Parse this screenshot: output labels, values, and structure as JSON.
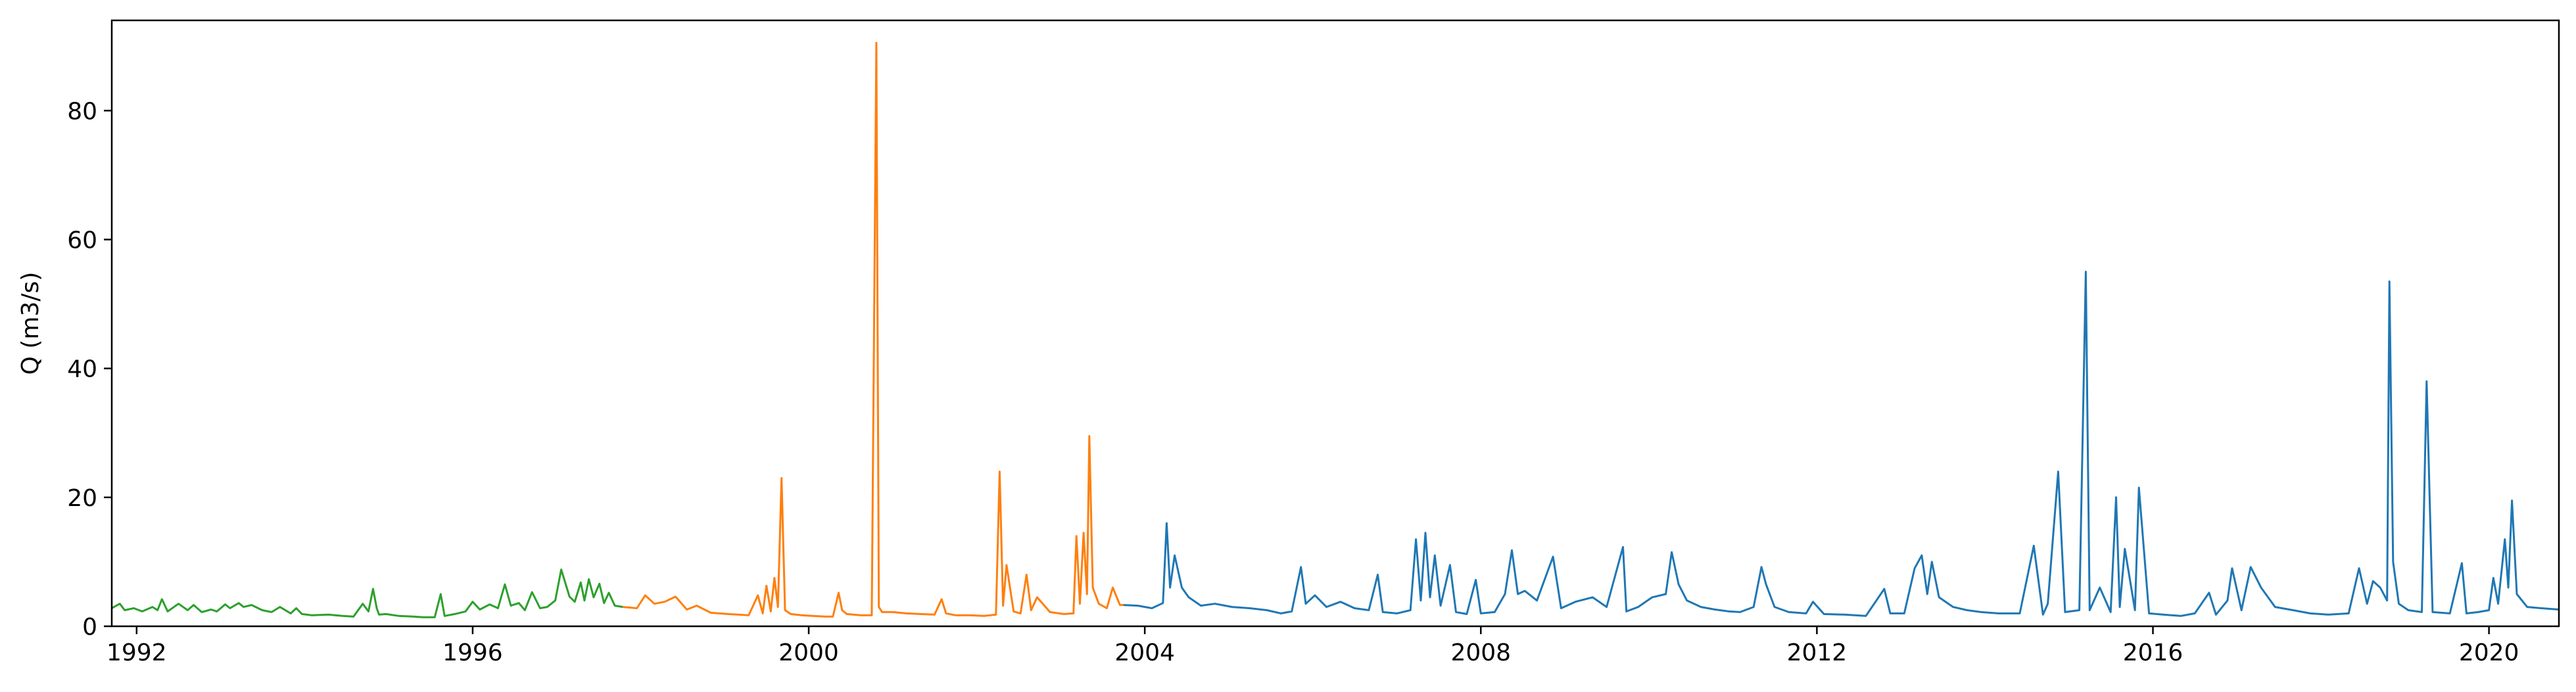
{
  "chart_data": {
    "type": "line",
    "title": "",
    "xlabel": "",
    "ylabel": "Q (m3/s)",
    "xlim": [
      "1991-09-15",
      "2020-10-31"
    ],
    "ylim": [
      0,
      94
    ],
    "x_ticks": [
      "1992",
      "1996",
      "2000",
      "2004",
      "2008",
      "2012",
      "2016",
      "2020"
    ],
    "y_ticks": [
      "0",
      "20",
      "40",
      "60",
      "80"
    ],
    "grid": false,
    "legend": "none",
    "series": [
      {
        "color": "#2ca02c",
        "x": [
          "1991-09-15",
          "1991-10-20",
          "1991-11-10",
          "1991-12-20",
          "1992-01-25",
          "1992-03-10",
          "1992-04-01",
          "1992-04-20",
          "1992-05-15",
          "1992-07-01",
          "1992-08-10",
          "1992-09-05",
          "1992-10-10",
          "1992-11-20",
          "1992-12-15",
          "1993-01-20",
          "1993-02-10",
          "1993-03-20",
          "1993-04-10",
          "1993-05-15",
          "1993-06-30",
          "1993-08-10",
          "1993-09-15",
          "1993-11-01",
          "1993-11-25",
          "1993-12-20",
          "1994-02-01",
          "1994-04-15",
          "1994-06-15",
          "1994-08-01",
          "1994-09-10",
          "1994-10-05",
          "1994-10-25",
          "1994-11-10",
          "1994-11-20",
          "1994-12-20",
          "1995-02-15",
          "1995-04-20",
          "1995-06-01",
          "1995-07-20",
          "1995-08-15",
          "1995-09-01",
          "1995-10-15",
          "1995-12-01",
          "1996-01-01",
          "1996-02-01",
          "1996-03-15",
          "1996-04-20",
          "1996-05-20",
          "1996-06-15",
          "1996-07-20",
          "1996-08-15",
          "1996-09-15",
          "1996-10-20",
          "1996-11-20",
          "1996-12-25",
          "1997-01-20",
          "1997-02-25",
          "1997-03-20",
          "1997-04-15",
          "1997-05-01",
          "1997-05-20",
          "1997-06-10",
          "1997-07-05",
          "1997-07-25",
          "1997-08-15",
          "1997-09-10",
          "1997-10-15"
        ],
        "values": [
          2.8,
          3.5,
          2.5,
          2.8,
          2.3,
          3.0,
          2.5,
          4.2,
          2.3,
          3.5,
          2.5,
          3.3,
          2.2,
          2.6,
          2.3,
          3.4,
          2.8,
          3.6,
          3.0,
          3.3,
          2.5,
          2.2,
          3.0,
          2.0,
          2.8,
          1.9,
          1.7,
          1.8,
          1.6,
          1.5,
          3.5,
          2.3,
          5.8,
          2.8,
          1.8,
          1.9,
          1.6,
          1.5,
          1.4,
          1.4,
          5.0,
          1.6,
          1.9,
          2.3,
          3.8,
          2.6,
          3.4,
          2.8,
          6.5,
          3.2,
          3.6,
          2.5,
          5.3,
          2.8,
          3.0,
          4.0,
          8.8,
          4.6,
          3.8,
          6.8,
          4.0,
          7.3,
          4.5,
          6.6,
          3.6,
          5.2,
          3.2,
          3.0
        ]
      },
      {
        "color": "#ff7f0e",
        "x": [
          "1997-10-15",
          "1997-12-15",
          "1998-01-20",
          "1998-03-01",
          "1998-04-15",
          "1998-06-01",
          "1998-07-20",
          "1998-09-01",
          "1998-11-01",
          "1999-01-15",
          "1999-03-01",
          "1999-04-15",
          "1999-05-25",
          "1999-06-15",
          "1999-07-01",
          "1999-07-20",
          "1999-08-05",
          "1999-08-20",
          "1999-09-05",
          "1999-09-20",
          "1999-10-15",
          "1999-12-01",
          "2000-01-20",
          "2000-03-15",
          "2000-04-15",
          "2000-05-10",
          "2000-05-25",
          "2000-06-15",
          "2000-08-15",
          "2000-10-01",
          "2000-10-21",
          "2000-11-01",
          "2000-11-15",
          "2001-01-01",
          "2001-03-01",
          "2001-05-01",
          "2001-07-01",
          "2001-08-01",
          "2001-08-20",
          "2001-10-01",
          "2001-12-01",
          "2002-02-01",
          "2002-03-25",
          "2002-04-10",
          "2002-04-25",
          "2002-05-10",
          "2002-06-10",
          "2002-07-10",
          "2002-08-05",
          "2002-08-25",
          "2002-09-20",
          "2002-11-15",
          "2003-01-15",
          "2003-02-25",
          "2003-03-10",
          "2003-03-25",
          "2003-04-10",
          "2003-04-25",
          "2003-05-05",
          "2003-05-20",
          "2003-06-15",
          "2003-07-20",
          "2003-08-15",
          "2003-09-15",
          "2003-10-01"
        ],
        "values": [
          3.0,
          2.8,
          4.8,
          3.5,
          3.8,
          4.6,
          2.6,
          3.2,
          2.1,
          1.9,
          1.8,
          1.7,
          4.8,
          2.0,
          6.3,
          2.3,
          7.5,
          3.0,
          23.0,
          2.5,
          1.9,
          1.7,
          1.6,
          1.5,
          1.5,
          5.2,
          2.5,
          1.9,
          1.7,
          1.7,
          90.5,
          3.0,
          2.2,
          2.2,
          2.0,
          1.9,
          1.8,
          4.2,
          2.0,
          1.7,
          1.7,
          1.6,
          1.8,
          24.0,
          3.2,
          9.5,
          2.3,
          2.0,
          8.0,
          2.5,
          4.5,
          2.2,
          1.9,
          2.0,
          14.0,
          3.5,
          14.5,
          5.0,
          29.5,
          6.0,
          3.5,
          2.8,
          6.0,
          3.3,
          3.3
        ]
      },
      {
        "color": "#1f77b4",
        "x": [
          "2003-10-01",
          "2003-12-01",
          "2004-02-01",
          "2004-03-20",
          "2004-04-05",
          "2004-04-20",
          "2004-05-10",
          "2004-06-10",
          "2004-07-10",
          "2004-09-01",
          "2004-11-01",
          "2005-01-15",
          "2005-04-01",
          "2005-06-15",
          "2005-08-15",
          "2005-10-01",
          "2005-11-10",
          "2005-12-01",
          "2006-01-10",
          "2006-03-01",
          "2006-05-01",
          "2006-07-01",
          "2006-09-01",
          "2006-10-10",
          "2006-11-01",
          "2007-01-01",
          "2007-03-01",
          "2007-03-25",
          "2007-04-15",
          "2007-05-05",
          "2007-05-25",
          "2007-06-15",
          "2007-07-10",
          "2007-08-20",
          "2007-09-15",
          "2007-11-01",
          "2007-12-10",
          "2008-01-01",
          "2008-03-01",
          "2008-04-15",
          "2008-05-15",
          "2008-06-10",
          "2008-07-10",
          "2008-09-01",
          "2008-11-10",
          "2008-12-15",
          "2009-02-15",
          "2009-05-01",
          "2009-07-01",
          "2009-09-10",
          "2009-09-25",
          "2009-11-15",
          "2010-01-15",
          "2010-03-15",
          "2010-04-10",
          "2010-05-10",
          "2010-06-15",
          "2010-08-15",
          "2010-10-15",
          "2010-12-15",
          "2011-02-01",
          "2011-04-01",
          "2011-05-05",
          "2011-05-25",
          "2011-07-01",
          "2011-09-01",
          "2011-11-15",
          "2011-12-15",
          "2012-02-01",
          "2012-05-01",
          "2012-08-01",
          "2012-10-20",
          "2012-11-15",
          "2013-01-15",
          "2013-03-01",
          "2013-04-01",
          "2013-04-25",
          "2013-05-15",
          "2013-06-15",
          "2013-08-15",
          "2013-10-15",
          "2013-12-15",
          "2014-03-01",
          "2014-06-01",
          "2014-08-01",
          "2014-09-10",
          "2014-10-01",
          "2014-11-15",
          "2014-12-15",
          "2015-02-15",
          "2015-03-15",
          "2015-04-01",
          "2015-05-15",
          "2015-07-01",
          "2015-07-25",
          "2015-08-10",
          "2015-09-01",
          "2015-10-15",
          "2015-11-01",
          "2015-12-15",
          "2016-02-15",
          "2016-05-01",
          "2016-07-01",
          "2016-09-01",
          "2016-10-01",
          "2016-11-20",
          "2016-12-10",
          "2017-01-20",
          "2017-03-01",
          "2017-04-15",
          "2017-06-15",
          "2017-09-01",
          "2017-11-15",
          "2018-02-01",
          "2018-05-01",
          "2018-06-15",
          "2018-07-20",
          "2018-08-15",
          "2018-09-15",
          "2018-10-15",
          "2018-10-25",
          "2018-11-10",
          "2018-12-05",
          "2019-01-15",
          "2019-03-15",
          "2019-04-05",
          "2019-05-01",
          "2019-07-15",
          "2019-09-05",
          "2019-09-25",
          "2019-11-15",
          "2020-01-01",
          "2020-01-20",
          "2020-02-10",
          "2020-03-10",
          "2020-03-25",
          "2020-04-10",
          "2020-05-01",
          "2020-06-15",
          "2020-08-15",
          "2020-10-31"
        ],
        "values": [
          3.3,
          3.2,
          2.8,
          3.6,
          16.0,
          6.0,
          11.0,
          6.0,
          4.5,
          3.2,
          3.5,
          3.0,
          2.8,
          2.5,
          2.0,
          2.3,
          9.2,
          3.5,
          4.8,
          3.0,
          3.8,
          2.8,
          2.5,
          8.0,
          2.2,
          2.0,
          2.5,
          13.5,
          4.0,
          14.5,
          4.5,
          11.0,
          3.2,
          9.5,
          2.2,
          1.9,
          7.2,
          2.0,
          2.2,
          5.0,
          11.8,
          5.0,
          5.5,
          4.0,
          10.8,
          2.8,
          3.8,
          4.5,
          3.0,
          12.3,
          2.3,
          3.0,
          4.5,
          5.0,
          11.5,
          6.5,
          4.0,
          3.0,
          2.6,
          2.3,
          2.2,
          3.0,
          9.2,
          6.5,
          3.0,
          2.2,
          2.0,
          3.8,
          1.9,
          1.8,
          1.6,
          5.8,
          2.0,
          2.0,
          9.0,
          11.0,
          5.0,
          10.0,
          4.5,
          3.0,
          2.5,
          2.2,
          2.0,
          2.0,
          12.5,
          1.8,
          3.5,
          24.0,
          2.2,
          2.5,
          55.0,
          2.5,
          6.0,
          2.2,
          20.0,
          3.0,
          12.0,
          2.5,
          21.5,
          2.0,
          1.8,
          1.6,
          2.0,
          5.2,
          1.8,
          4.0,
          9.0,
          2.5,
          9.2,
          6.0,
          3.0,
          2.5,
          2.0,
          1.8,
          2.0,
          9.0,
          3.5,
          7.0,
          6.0,
          4.0,
          53.5,
          10.0,
          3.5,
          2.5,
          2.2,
          38.0,
          2.2,
          2.0,
          9.8,
          2.0,
          2.2,
          2.5,
          7.5,
          3.5,
          13.5,
          6.0,
          19.5,
          5.0,
          3.0,
          2.8,
          2.6
        ]
      }
    ]
  }
}
